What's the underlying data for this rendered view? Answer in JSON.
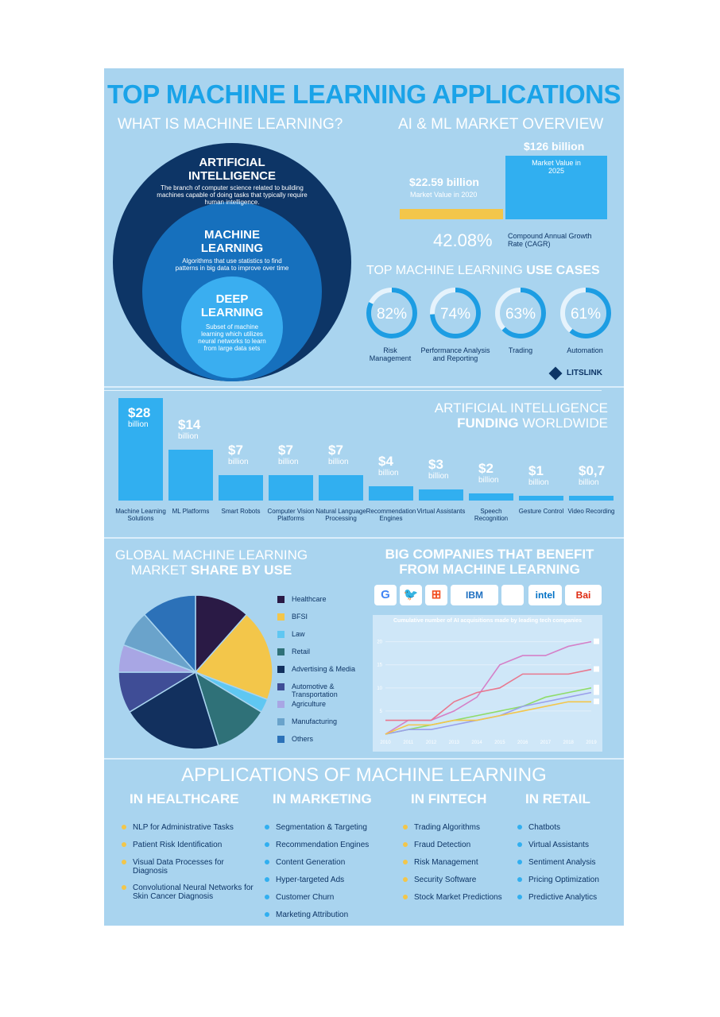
{
  "title": "TOP MACHINE LEARNING APPLICATIONS",
  "what_is": {
    "heading": "WHAT IS MACHINE LEARNING?",
    "ai_title": "ARTIFICIAL INTELLIGENCE",
    "ai_desc": "The branch of computer science related to building machines capable of doing tasks that typically require human intelligence.",
    "ml_title": "MACHINE LEARNING",
    "ml_desc": "Algorithms that use statistics to find patterns in big data to improve over time",
    "dl_title": "DEEP LEARNING",
    "dl_desc": "Subset of machine learning which utilizes neural networks to learn from large data sets"
  },
  "market": {
    "heading": "AI & ML MARKET OVERVIEW",
    "v2020": "$22.59 billion",
    "v2020_label": "Market Value in 2020",
    "v2025": "$126 billion",
    "v2025_label": "Market Value in 2025",
    "cagr": "42.08%",
    "cagr_label": "Compound Annual Growth Rate (CAGR)",
    "colors": {
      "y2020": "#f3c64a",
      "y2025": "#31aff0"
    }
  },
  "use_cases": {
    "heading_light": "TOP MACHINE LEARNING",
    "heading_bold": "USE CASES",
    "items": [
      {
        "pct": "82%",
        "value": 82,
        "label": "Risk Management"
      },
      {
        "pct": "74%",
        "value": 74,
        "label": "Performance Analysis and Reporting"
      },
      {
        "pct": "63%",
        "value": 63,
        "label": "Trading"
      },
      {
        "pct": "61%",
        "value": 61,
        "label": "Automation"
      }
    ],
    "brand": "LITSLINK"
  },
  "funding": {
    "heading_line1": "ARTIFICIAL INTELLIGENCE",
    "heading_bold": "FUNDING",
    "heading_rest": "WORLDWIDE"
  },
  "market_share": {
    "heading_line1": "GLOBAL MACHINE LEARNING",
    "heading_light2": "MARKET",
    "heading_bold2": "SHARE BY USE"
  },
  "companies": {
    "heading": "BIG COMPANIES THAT BENEFIT FROM MACHINE LEARNING",
    "logos": [
      {
        "text": "G",
        "color": "#4285f4",
        "icon": "google-logo"
      },
      {
        "text": "🐦",
        "color": "#1da1f2",
        "icon": "twitter-logo"
      },
      {
        "text": "⊞",
        "color": "#f25022",
        "icon": "microsoft-logo"
      },
      {
        "text": "IBM",
        "color": "#1f70c1",
        "icon": "ibm-logo"
      },
      {
        "text": "",
        "color": "#999999",
        "icon": "apple-logo"
      },
      {
        "text": "intel",
        "color": "#0071c5",
        "icon": "intel-logo"
      },
      {
        "text": "Bai",
        "color": "#de2910",
        "icon": "baidu-logo"
      }
    ],
    "line_chart_title": "Cumulative number of AI acquisitions made by leading tech companies"
  },
  "applications": {
    "heading": "APPLICATIONS OF MACHINE LEARNING",
    "columns": [
      {
        "title": "IN HEALTHCARE",
        "color": "#f3c64a",
        "items": [
          "NLP for Administrative Tasks",
          "Patient Risk Identification",
          "Visual Data Processes for Diagnosis",
          "Convolutional Neural Networks for Skin Cancer Diagnosis"
        ]
      },
      {
        "title": "IN MARKETING",
        "color": "#31aff0",
        "items": [
          "Segmentation & Targeting",
          "Recommendation Engines",
          "Content Generation",
          "Hyper-targeted Ads",
          "Customer Churn",
          "Marketing Attribution"
        ]
      },
      {
        "title": "IN FINTECH",
        "color": "#f3c64a",
        "items": [
          "Trading Algorithms",
          "Fraud Detection",
          "Risk Management",
          "Security Software",
          "Stock Market Predictions"
        ]
      },
      {
        "title": "IN RETAIL",
        "color": "#31aff0",
        "items": [
          "Chatbots",
          "Virtual Assistants",
          "Sentiment Analysis",
          "Pricing Optimization",
          "Predictive Analytics"
        ]
      }
    ]
  },
  "chart_data": [
    {
      "type": "bar",
      "categories": [
        "Machine Learning Solutions",
        "ML Platforms",
        "Smart Robots",
        "Computer Vision Platforms",
        "Natural Language Processing",
        "Recommendation Engines",
        "Virtual Assistants",
        "Speech Recognition",
        "Gesture Control",
        "Video Recording"
      ],
      "values": [
        28,
        14,
        7,
        7,
        7,
        4,
        3,
        2,
        1,
        0.7
      ],
      "value_labels": [
        "$28",
        "$14",
        "$7",
        "$7",
        "$7",
        "$4",
        "$3",
        "$2",
        "$1",
        "$0,7"
      ],
      "unit_label": "billion",
      "ylim": [
        0,
        28
      ],
      "color": "#31aff0"
    },
    {
      "type": "pie",
      "labels": [
        "Healthcare",
        "BFSI",
        "Law",
        "Retail",
        "Advertising & Media",
        "Automotive & Transportation",
        "Agriculture",
        "Manufacturing",
        "Others"
      ],
      "values": [
        12,
        20,
        3,
        12,
        22,
        9,
        6,
        8,
        12
      ],
      "colors": [
        "#2a1a45",
        "#f3c64a",
        "#5fc7f2",
        "#2f7178",
        "#12305e",
        "#3f4d96",
        "#a8a6e4",
        "#6aa3cb",
        "#2c71b8"
      ],
      "legend": "right"
    },
    {
      "type": "line",
      "title": "Cumulative number of AI acquisitions made by leading tech companies",
      "x": [
        2010,
        2011,
        2012,
        2013,
        2014,
        2015,
        2016,
        2017,
        2018,
        2019
      ],
      "x_tick_labels": [
        "2010",
        "2011",
        "2012",
        "2013",
        "2014",
        "2015",
        "2016",
        "2017",
        "2018",
        "2019"
      ],
      "y_tick_labels": [
        "5",
        "10",
        "15",
        "20"
      ],
      "ylim": [
        0,
        22
      ],
      "series": [
        {
          "values": [
            0,
            3,
            3,
            5,
            8,
            15,
            17,
            17,
            19,
            20
          ],
          "color": "#d580c8",
          "marker": "apple-marker"
        },
        {
          "values": [
            3,
            3,
            3,
            7,
            9,
            10,
            13,
            13,
            13,
            14
          ],
          "color": "#e8788f",
          "marker": "google-marker"
        },
        {
          "values": [
            0,
            1,
            2,
            3,
            4,
            5,
            6,
            8,
            9,
            10
          ],
          "color": "#8fdc6a",
          "marker": "microsoft-marker"
        },
        {
          "values": [
            0,
            1,
            1,
            2,
            3,
            4,
            6,
            7,
            8,
            9
          ],
          "color": "#9aa0ea",
          "marker": "facebook-marker"
        },
        {
          "values": [
            0,
            2,
            2,
            3,
            3,
            4,
            5,
            6,
            7,
            7
          ],
          "color": "#f3c64a",
          "marker": "amazon-marker"
        }
      ],
      "grid": true
    }
  ]
}
